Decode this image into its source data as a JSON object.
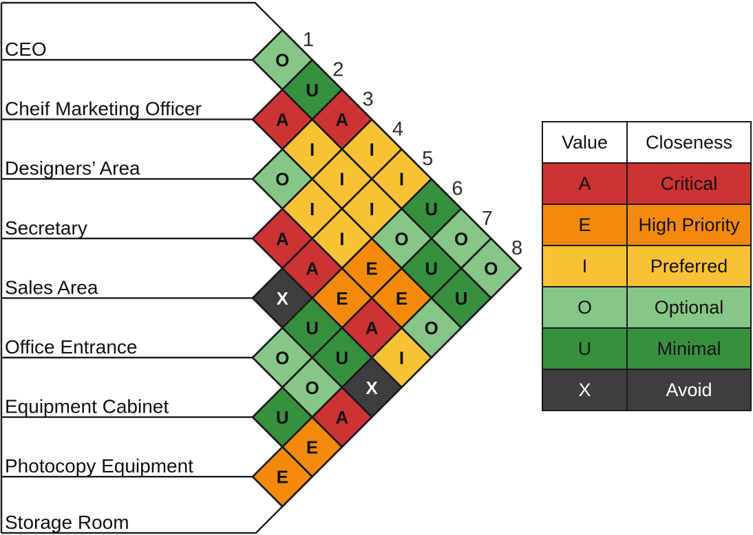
{
  "matrix": {
    "row_labels": [
      "CEO",
      "Cheif Marketing Officer",
      "Designers’ Area",
      "Secretary",
      "Sales Area",
      "Office Entrance",
      "Equipment Cabinet",
      "Photocopy Equipment",
      "Storage Room"
    ],
    "column_numbers": [
      "1",
      "2",
      "3",
      "4",
      "5",
      "6",
      "7",
      "8"
    ],
    "relationships": [
      [
        "O",
        "U",
        "A",
        "I",
        "I",
        "U",
        "O",
        "O"
      ],
      [
        "A",
        "I",
        "I",
        "I",
        "O",
        "U",
        "U"
      ],
      [
        "O",
        "I",
        "I",
        "E",
        "E",
        "O"
      ],
      [
        "A",
        "A",
        "E",
        "A",
        "I"
      ],
      [
        "X",
        "U",
        "U",
        "X"
      ],
      [
        "O",
        "O",
        "A"
      ],
      [
        "U",
        "E"
      ],
      [
        "E"
      ]
    ]
  },
  "rating_colors": {
    "A": {
      "fill": "#ce3334",
      "text": "#111111"
    },
    "E": {
      "fill": "#f48a0b",
      "text": "#111111"
    },
    "I": {
      "fill": "#f9c235",
      "text": "#111111"
    },
    "O": {
      "fill": "#86c787",
      "text": "#111111"
    },
    "U": {
      "fill": "#37903d",
      "text": "#111111"
    },
    "X": {
      "fill": "#3e3e3e",
      "text": "#ffffff"
    }
  },
  "legend": {
    "headers": [
      "Value",
      "Closeness"
    ],
    "rows": [
      {
        "value": "A",
        "closeness": "Critical"
      },
      {
        "value": "E",
        "closeness": "High Priority"
      },
      {
        "value": "I",
        "closeness": "Preferred"
      },
      {
        "value": "O",
        "closeness": "Optional"
      },
      {
        "value": "U",
        "closeness": "Minimal"
      },
      {
        "value": "X",
        "closeness": "Avoid"
      }
    ]
  },
  "line_color": "#1a1a1a",
  "number_color": "#2e2e2e"
}
